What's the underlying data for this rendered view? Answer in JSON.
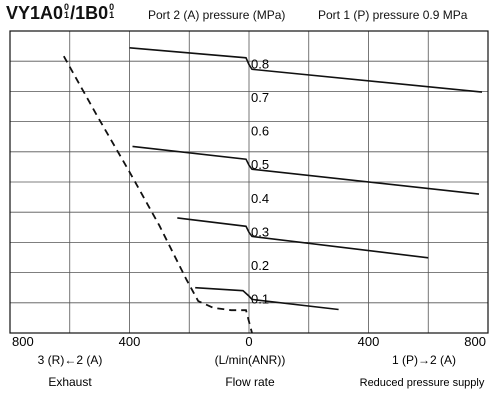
{
  "header": {
    "model_a": "VY1A0",
    "model_a_sup": "0",
    "model_a_sub": "1",
    "separator": "/",
    "model_b": "1B0",
    "model_b_sup": "0",
    "model_b_sub": "1",
    "series_header": "Port 2 (A) pressure (MPa)",
    "supply_header": "Port 1 (P) pressure 0.9 MPa"
  },
  "footer": {
    "left_direction": "3 (R)←2 (A)",
    "left_caption": "Exhaust",
    "center_unit": "(L/min(ANR))",
    "center_caption": "Flow rate",
    "right_direction": "1 (P)→2 (A)",
    "right_caption": "Reduced pressure supply"
  },
  "chart_data": {
    "type": "line",
    "x_tick_labels": [
      "800",
      "400",
      "0",
      "400",
      "800"
    ],
    "x_tick_values": [
      -800,
      -400,
      0,
      400,
      800
    ],
    "xlim": [
      -800,
      800
    ],
    "ylim": [
      0,
      0.9
    ],
    "grid": true,
    "curve_labels": [
      "0.8",
      "0.7",
      "0.6",
      "0.5",
      "0.4",
      "0.3",
      "0.2",
      "0.1"
    ],
    "series": [
      {
        "name": "0.8",
        "style": "solid",
        "points": [
          [
            -400,
            0.85
          ],
          [
            -10,
            0.82
          ],
          [
            0,
            0.8
          ],
          [
            10,
            0.786
          ],
          [
            780,
            0.718
          ]
        ]
      },
      {
        "name": "0.5",
        "style": "solid",
        "points": [
          [
            -390,
            0.556
          ],
          [
            -10,
            0.518
          ],
          [
            0,
            0.5
          ],
          [
            10,
            0.488
          ],
          [
            770,
            0.414
          ]
        ]
      },
      {
        "name": "0.3",
        "style": "solid",
        "points": [
          [
            -240,
            0.343
          ],
          [
            -10,
            0.318
          ],
          [
            0,
            0.3
          ],
          [
            10,
            0.288
          ],
          [
            600,
            0.224
          ]
        ]
      },
      {
        "name": "0.1",
        "style": "solid",
        "points": [
          [
            -180,
            0.135
          ],
          [
            -20,
            0.126
          ],
          [
            0,
            0.11
          ],
          [
            10,
            0.1
          ],
          [
            300,
            0.07
          ]
        ]
      },
      {
        "name": "exhaust",
        "style": "dashed",
        "points": [
          [
            -620,
            0.825
          ],
          [
            -510,
            0.65
          ],
          [
            -400,
            0.48
          ],
          [
            -300,
            0.32
          ],
          [
            -210,
            0.16
          ],
          [
            -170,
            0.095
          ],
          [
            -120,
            0.075
          ],
          [
            -60,
            0.068
          ],
          [
            -10,
            0.068
          ],
          [
            10,
            0.0
          ]
        ]
      }
    ]
  }
}
